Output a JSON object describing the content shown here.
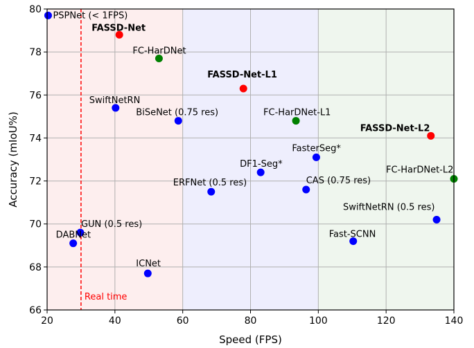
{
  "chart_data": {
    "type": "scatter",
    "title": "",
    "xlabel": "Speed (FPS)",
    "ylabel": "Accuracy (mIoU%)",
    "xlim": [
      20,
      140
    ],
    "ylim": [
      66,
      80
    ],
    "xticks": [
      20,
      40,
      60,
      80,
      100,
      120,
      140
    ],
    "yticks": [
      66,
      68,
      70,
      72,
      74,
      76,
      78,
      80
    ],
    "grid": true,
    "colors": {
      "blue": "#0000ff",
      "red": "#ff0000",
      "green": "#008000"
    },
    "background_bands": [
      {
        "x0": 20,
        "x1": 60,
        "color": "#fdeeee"
      },
      {
        "x0": 60,
        "x1": 100,
        "color": "#eeeefd"
      },
      {
        "x0": 100,
        "x1": 140,
        "color": "#eff6ee"
      }
    ],
    "reference_line": {
      "x": 30,
      "label": "Real time",
      "color": "#ff0000",
      "style": "dashed"
    },
    "points": [
      {
        "name": "PSPNet (< 1FPS)",
        "x": 20.3,
        "y": 79.7,
        "color": "blue",
        "bold": false
      },
      {
        "name": "FASSD-Net",
        "x": 41.3,
        "y": 78.8,
        "color": "red",
        "bold": true
      },
      {
        "name": "FC-HarDNet",
        "x": 53.0,
        "y": 77.7,
        "color": "green",
        "bold": false
      },
      {
        "name": "FASSD-Net-L1",
        "x": 77.9,
        "y": 76.3,
        "color": "red",
        "bold": true
      },
      {
        "name": "SwiftNetRN",
        "x": 40.2,
        "y": 75.4,
        "color": "blue",
        "bold": false
      },
      {
        "name": "BiSeNet (0.75 res)",
        "x": 58.7,
        "y": 74.8,
        "color": "blue",
        "bold": false
      },
      {
        "name": "FC-HarDNet-L1",
        "x": 93.4,
        "y": 74.8,
        "color": "green",
        "bold": false
      },
      {
        "name": "FASSD-Net-L2",
        "x": 133.2,
        "y": 74.1,
        "color": "red",
        "bold": true
      },
      {
        "name": "FasterSeg*",
        "x": 99.4,
        "y": 73.1,
        "color": "blue",
        "bold": false
      },
      {
        "name": "DF1-Seg*",
        "x": 83.0,
        "y": 72.4,
        "color": "blue",
        "bold": false
      },
      {
        "name": "FC-HarDNet-L2",
        "x": 140.0,
        "y": 72.1,
        "color": "green",
        "bold": false
      },
      {
        "name": "ERFNet (0.5 res)",
        "x": 68.4,
        "y": 71.5,
        "color": "blue",
        "bold": false
      },
      {
        "name": "CAS (0.75 res)",
        "x": 96.4,
        "y": 71.6,
        "color": "blue",
        "bold": false
      },
      {
        "name": "SwiftNetRN (0.5 res)",
        "x": 134.9,
        "y": 70.2,
        "color": "blue",
        "bold": false
      },
      {
        "name": "GUN (0.5 res)",
        "x": 29.8,
        "y": 69.6,
        "color": "blue",
        "bold": false
      },
      {
        "name": "Fast-SCNN",
        "x": 110.3,
        "y": 69.2,
        "color": "blue",
        "bold": false
      },
      {
        "name": "DABNet",
        "x": 27.7,
        "y": 69.1,
        "color": "blue",
        "bold": false
      },
      {
        "name": "ICNet",
        "x": 49.7,
        "y": 67.7,
        "color": "blue",
        "bold": false
      }
    ]
  }
}
